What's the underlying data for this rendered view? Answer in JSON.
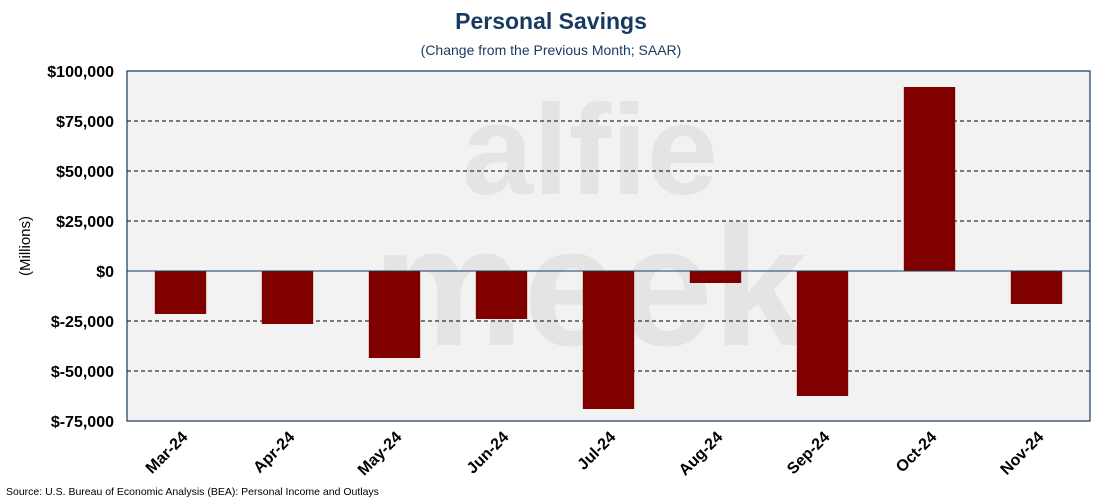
{
  "chart_data": {
    "type": "bar",
    "title": "Personal Savings",
    "subtitle": "(Change from the Previous Month; SAAR)",
    "ylabel": "(Millions)",
    "xlabel": "",
    "categories": [
      "Mar-24",
      "Apr-24",
      "May-24",
      "Jun-24",
      "Jul-24",
      "Aug-24",
      "Sep-24",
      "Oct-24",
      "Nov-24"
    ],
    "values": [
      -21500,
      -26500,
      -43500,
      -24000,
      -69000,
      -6000,
      -62500,
      92000,
      -16500
    ],
    "ylim": [
      -75000,
      100000
    ],
    "yticks": [
      -75000,
      -50000,
      -25000,
      0,
      25000,
      50000,
      75000,
      100000
    ],
    "ytick_labels": [
      "$-75,000",
      "$-50,000",
      "$-25,000",
      "$0",
      "$25,000",
      "$50,000",
      "$75,000",
      "$100,000"
    ],
    "grid": "horizontal-dashed",
    "bar_color": "#800000",
    "plot_background": "#f2f2f2",
    "frame_color": "#173a5e",
    "title_color": "#173a5e"
  },
  "watermark": {
    "line1": "alfie",
    "line2": "meek"
  },
  "source": "Source: U.S. Bureau of Economic Analysis (BEA): Personal Income and Outlays"
}
